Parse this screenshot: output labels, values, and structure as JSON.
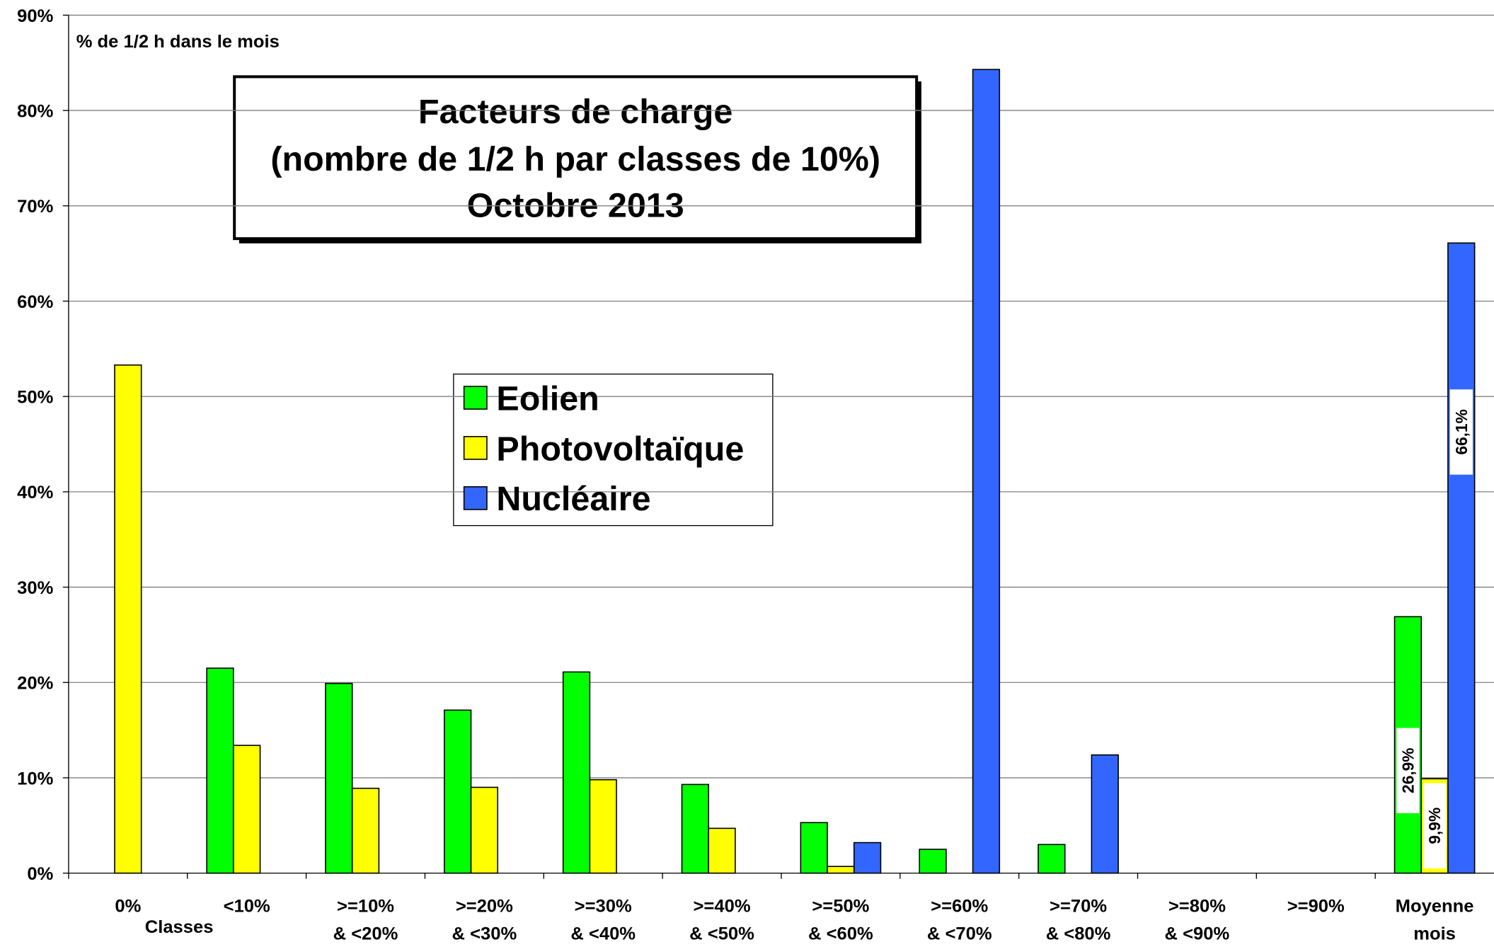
{
  "chart_data": {
    "type": "bar",
    "title": "Facteurs de charge",
    "subtitle": "(nombre de 1/2 h par classes de 10%)",
    "date_label": "Octobre 2013",
    "y_label": "% de 1/2 h dans le mois",
    "x_label": "Classes",
    "categories": [
      "0%",
      "<10%",
      ">=10% & <20%",
      ">=20% & <30%",
      ">=30% & <40%",
      ">=40% & <50%",
      ">=50% & <60%",
      ">=60% & <70%",
      ">=70% & <80%",
      ">=80% & <90%",
      ">=90%",
      "Moyenne mois"
    ],
    "series": [
      {
        "name": "Eolien",
        "color": "#00ff00",
        "values": [
          0,
          21.5,
          19.9,
          17.1,
          21.1,
          9.3,
          5.3,
          2.5,
          3.0,
          0,
          0,
          26.9
        ],
        "value_labels": [
          null,
          null,
          null,
          null,
          null,
          null,
          null,
          null,
          null,
          null,
          null,
          "26,9%"
        ]
      },
      {
        "name": "Photovoltaïque",
        "color": "#ffff00",
        "values": [
          53.3,
          13.4,
          8.9,
          9.0,
          9.8,
          4.7,
          0.7,
          0,
          0,
          0,
          0,
          9.9
        ],
        "value_labels": [
          null,
          null,
          null,
          null,
          null,
          null,
          null,
          null,
          null,
          null,
          null,
          "9,9%"
        ]
      },
      {
        "name": "Nucléaire",
        "color": "#3366ff",
        "values": [
          0,
          0,
          0,
          0,
          0,
          0,
          3.2,
          84.3,
          12.4,
          0,
          0,
          66.1
        ],
        "value_labels": [
          null,
          null,
          null,
          null,
          null,
          null,
          null,
          null,
          null,
          null,
          null,
          "66,1%"
        ]
      }
    ],
    "ylim": [
      0,
      90
    ],
    "yticks": [
      {
        "value": 0,
        "label": "0%"
      },
      {
        "value": 10,
        "label": "10%"
      },
      {
        "value": 20,
        "label": "20%"
      },
      {
        "value": 30,
        "label": "30%"
      },
      {
        "value": 40,
        "label": "40%"
      },
      {
        "value": 50,
        "label": "50%"
      },
      {
        "value": 60,
        "label": "60%"
      },
      {
        "value": 70,
        "label": "70%"
      },
      {
        "value": 80,
        "label": "80%"
      },
      {
        "value": 90,
        "label": "90%"
      }
    ],
    "grid": true
  }
}
